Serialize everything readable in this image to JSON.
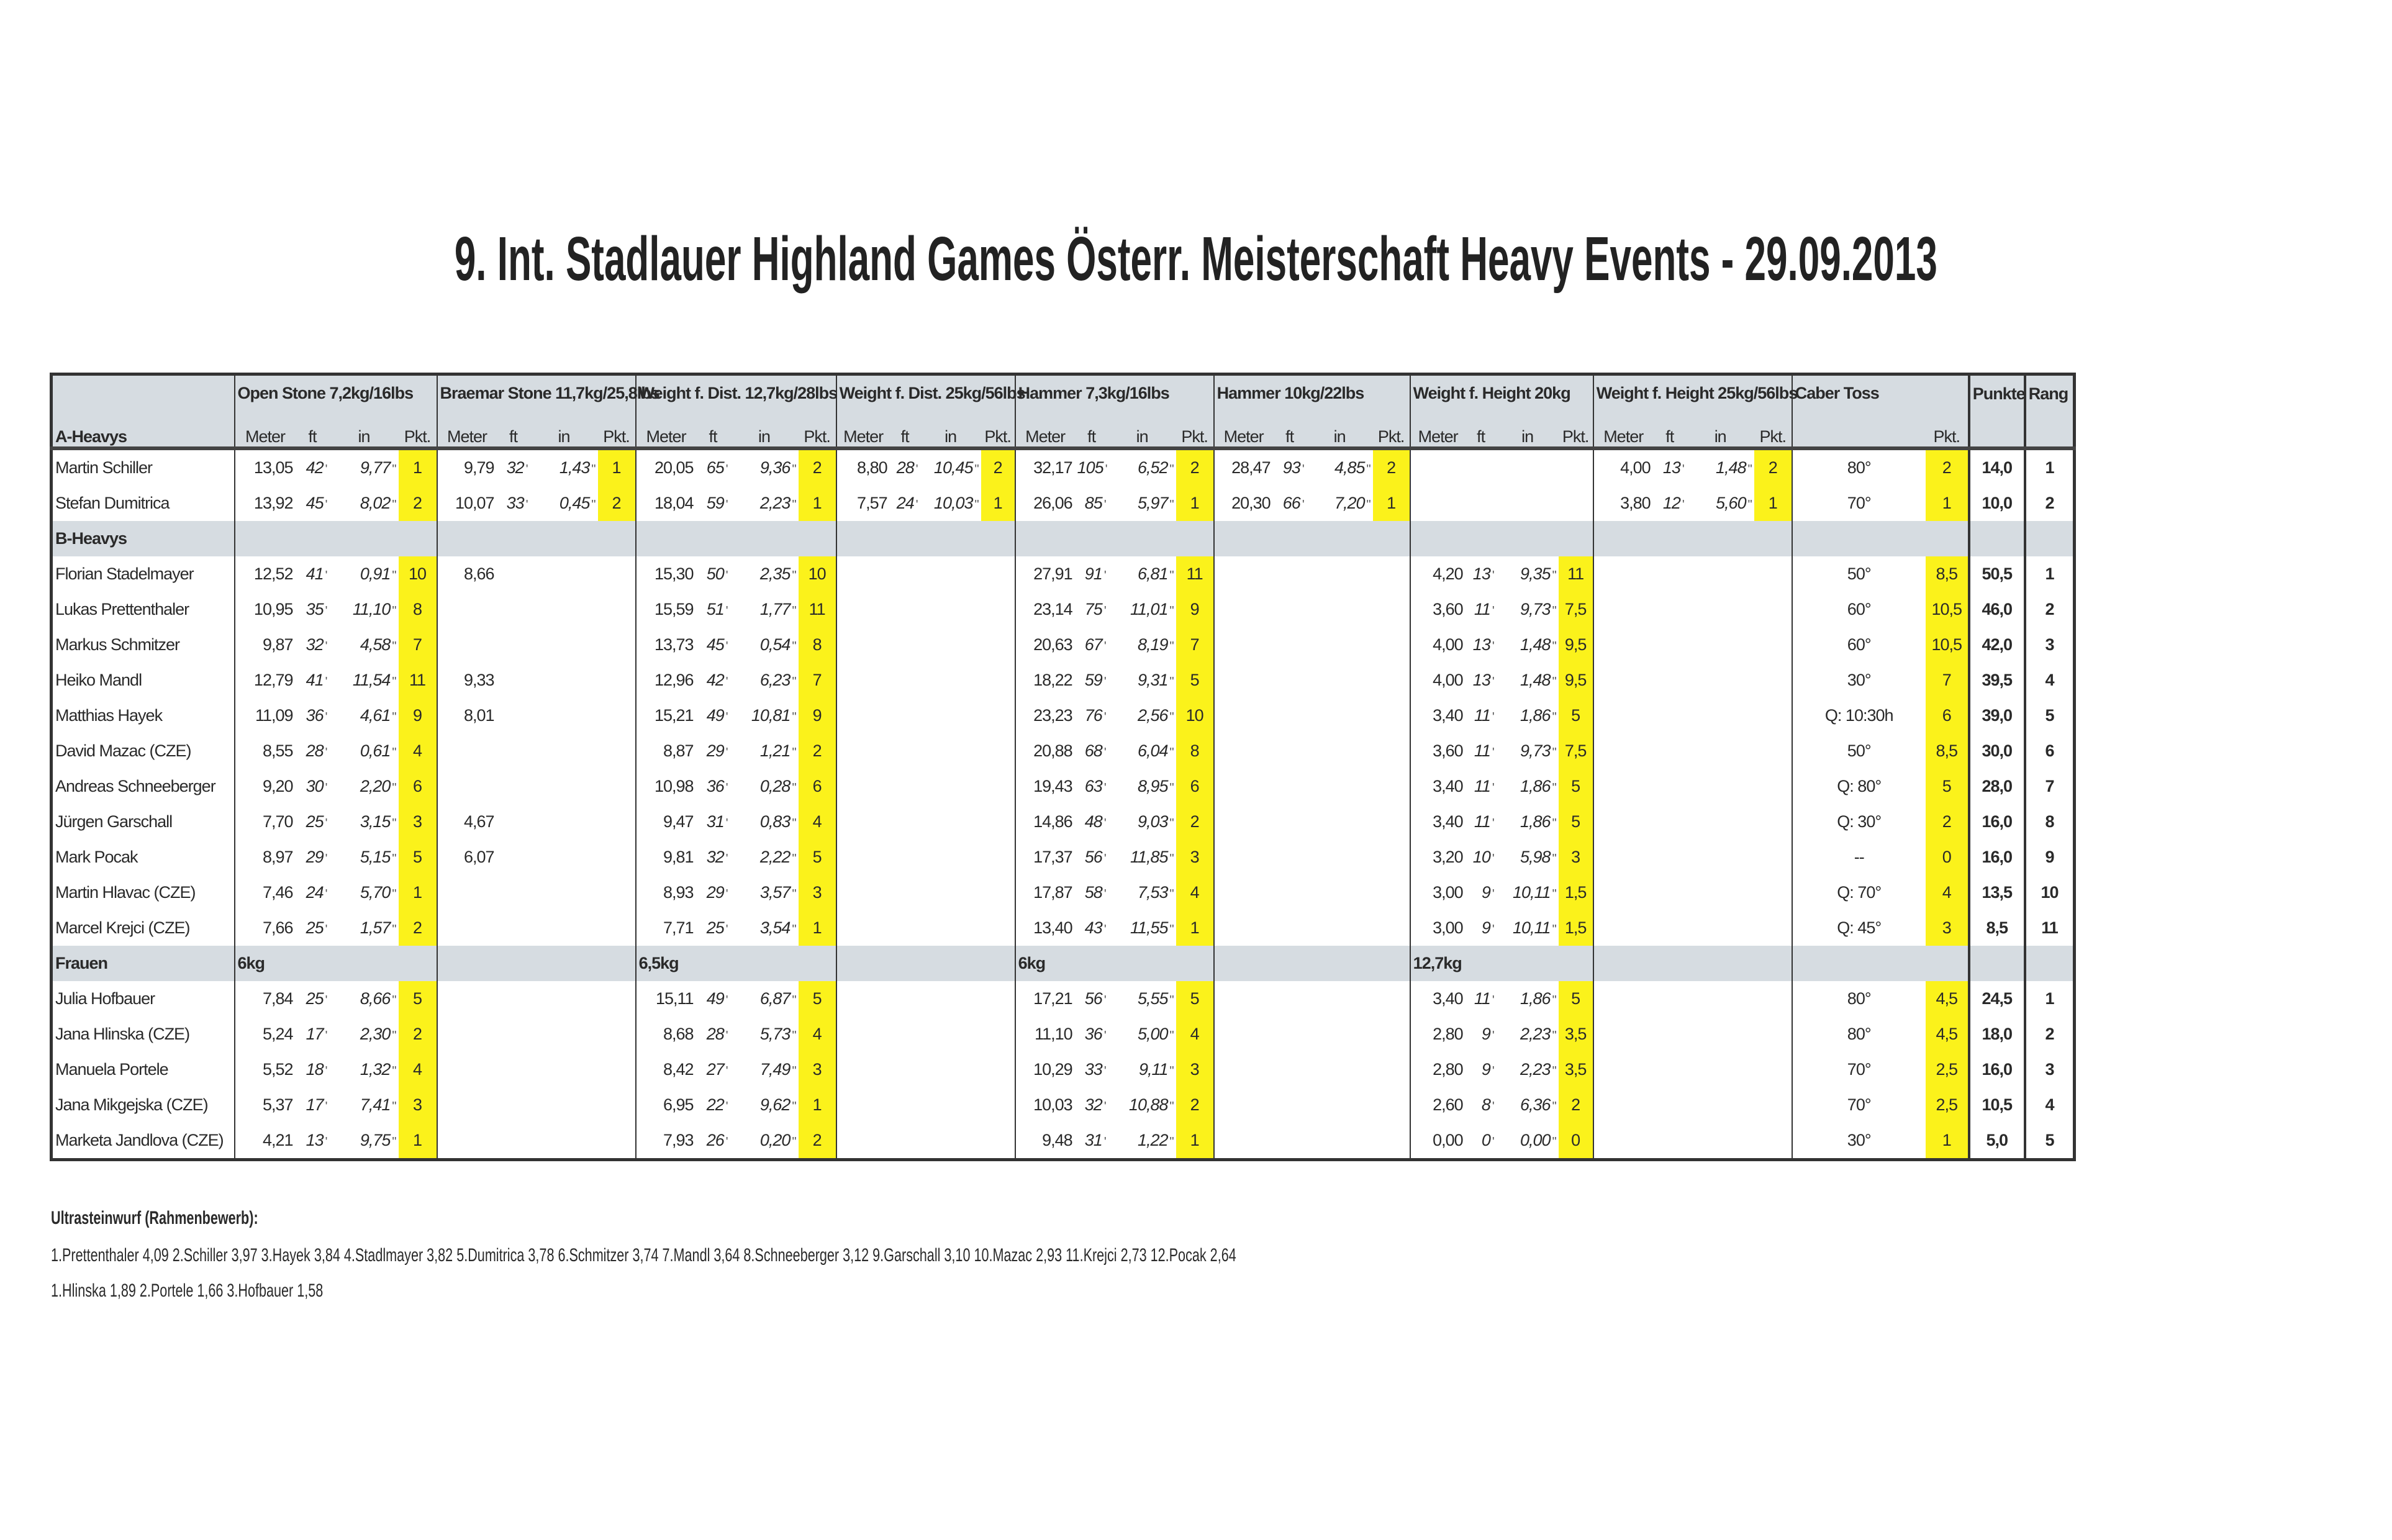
{
  "title": "9. Int. Stadlauer Highland Games Österr. Meisterschaft Heavy Events - 29.09.2013",
  "colors": {
    "highlight": "#fbf21b",
    "header_bg": "#d6dce1"
  },
  "marks": {
    "ft": "'",
    "in": "\""
  },
  "events": [
    {
      "key": "os",
      "label": "Open Stone 7,2kg/16lbs"
    },
    {
      "key": "bs",
      "label": "Braemar Stone 11,7kg/25,8lbs"
    },
    {
      "key": "wd12",
      "label": "Weight f. Dist. 12,7kg/28lbs"
    },
    {
      "key": "wd25",
      "label": "Weight f. Dist. 25kg/56lbs"
    },
    {
      "key": "h7",
      "label": "Hammer 7,3kg/16lbs"
    },
    {
      "key": "h10",
      "label": "Hammer 10kg/22lbs"
    },
    {
      "key": "wh20",
      "label": "Weight f. Height 20kg"
    },
    {
      "key": "wh25",
      "label": "Weight f. Height 25kg/56lbs"
    }
  ],
  "sub_labels": {
    "meter": "Meter",
    "ft": "ft",
    "in": "in",
    "pkt": "Pkt."
  },
  "caber_label": "Caber Toss",
  "punkte_label": "Punkte",
  "rang_label": "Rang",
  "first_group": "A-Heavys",
  "rows": [
    {
      "name": "Martin Schiller",
      "ev": {
        "os": [
          "13,05",
          "42",
          "9,77",
          "1"
        ],
        "bs": [
          "9,79",
          "32",
          "1,43",
          "1"
        ],
        "wd12": [
          "20,05",
          "65",
          "9,36",
          "2"
        ],
        "wd25": [
          "8,80",
          "28",
          "10,45",
          "2"
        ],
        "h7": [
          "32,17",
          "105",
          "6,52",
          "2"
        ],
        "h10": [
          "28,47",
          "93",
          "4,85",
          "2"
        ],
        "wh25": [
          "4,00",
          "13",
          "1,48",
          "2"
        ]
      },
      "caber": "80°",
      "caber_pkt": "2",
      "punkte": "14,0",
      "rang": "1"
    },
    {
      "name": "Stefan Dumitrica",
      "ev": {
        "os": [
          "13,92",
          "45",
          "8,02",
          "2"
        ],
        "bs": [
          "10,07",
          "33",
          "0,45",
          "2"
        ],
        "wd12": [
          "18,04",
          "59",
          "2,23",
          "1"
        ],
        "wd25": [
          "7,57",
          "24",
          "10,03",
          "1"
        ],
        "h7": [
          "26,06",
          "85",
          "5,97",
          "1"
        ],
        "h10": [
          "20,30",
          "66",
          "7,20",
          "1"
        ],
        "wh25": [
          "3,80",
          "12",
          "5,60",
          "1"
        ]
      },
      "caber": "70°",
      "caber_pkt": "1",
      "punkte": "10,0",
      "rang": "2"
    },
    {
      "group": "B-Heavys"
    },
    {
      "name": "Florian Stadelmayer",
      "ev": {
        "os": [
          "12,52",
          "41",
          "0,91",
          "10"
        ],
        "bs": [
          "8,66"
        ],
        "wd12": [
          "15,30",
          "50",
          "2,35",
          "10"
        ],
        "h7": [
          "27,91",
          "91",
          "6,81",
          "11"
        ],
        "wh20": [
          "4,20",
          "13",
          "9,35",
          "11"
        ]
      },
      "caber": "50°",
      "caber_pkt": "8,5",
      "punkte": "50,5",
      "rang": "1"
    },
    {
      "name": "Lukas Prettenthaler",
      "ev": {
        "os": [
          "10,95",
          "35",
          "11,10",
          "8"
        ],
        "wd12": [
          "15,59",
          "51",
          "1,77",
          "11"
        ],
        "h7": [
          "23,14",
          "75",
          "11,01",
          "9"
        ],
        "wh20": [
          "3,60",
          "11",
          "9,73",
          "7,5"
        ]
      },
      "caber": "60°",
      "caber_pkt": "10,5",
      "punkte": "46,0",
      "rang": "2"
    },
    {
      "name": "Markus Schmitzer",
      "ev": {
        "os": [
          "9,87",
          "32",
          "4,58",
          "7"
        ],
        "wd12": [
          "13,73",
          "45",
          "0,54",
          "8"
        ],
        "h7": [
          "20,63",
          "67",
          "8,19",
          "7"
        ],
        "wh20": [
          "4,00",
          "13",
          "1,48",
          "9,5"
        ]
      },
      "caber": "60°",
      "caber_pkt": "10,5",
      "punkte": "42,0",
      "rang": "3"
    },
    {
      "name": "Heiko Mandl",
      "ev": {
        "os": [
          "12,79",
          "41",
          "11,54",
          "11"
        ],
        "bs": [
          "9,33"
        ],
        "wd12": [
          "12,96",
          "42",
          "6,23",
          "7"
        ],
        "h7": [
          "18,22",
          "59",
          "9,31",
          "5"
        ],
        "wh20": [
          "4,00",
          "13",
          "1,48",
          "9,5"
        ]
      },
      "caber": "30°",
      "caber_pkt": "7",
      "punkte": "39,5",
      "rang": "4"
    },
    {
      "name": "Matthias Hayek",
      "ev": {
        "os": [
          "11,09",
          "36",
          "4,61",
          "9"
        ],
        "bs": [
          "8,01"
        ],
        "wd12": [
          "15,21",
          "49",
          "10,81",
          "9"
        ],
        "h7": [
          "23,23",
          "76",
          "2,56",
          "10"
        ],
        "wh20": [
          "3,40",
          "11",
          "1,86",
          "5"
        ]
      },
      "caber": "Q: 10:30h",
      "caber_pkt": "6",
      "punkte": "39,0",
      "rang": "5"
    },
    {
      "name": "David Mazac (CZE)",
      "ev": {
        "os": [
          "8,55",
          "28",
          "0,61",
          "4"
        ],
        "wd12": [
          "8,87",
          "29",
          "1,21",
          "2"
        ],
        "h7": [
          "20,88",
          "68",
          "6,04",
          "8"
        ],
        "wh20": [
          "3,60",
          "11",
          "9,73",
          "7,5"
        ]
      },
      "caber": "50°",
      "caber_pkt": "8,5",
      "punkte": "30,0",
      "rang": "6"
    },
    {
      "name": "Andreas Schneeberger",
      "ev": {
        "os": [
          "9,20",
          "30",
          "2,20",
          "6"
        ],
        "wd12": [
          "10,98",
          "36",
          "0,28",
          "6"
        ],
        "h7": [
          "19,43",
          "63",
          "8,95",
          "6"
        ],
        "wh20": [
          "3,40",
          "11",
          "1,86",
          "5"
        ]
      },
      "caber": "Q: 80°",
      "caber_pkt": "5",
      "punkte": "28,0",
      "rang": "7"
    },
    {
      "name": "Jürgen Garschall",
      "ev": {
        "os": [
          "7,70",
          "25",
          "3,15",
          "3"
        ],
        "bs": [
          "4,67"
        ],
        "wd12": [
          "9,47",
          "31",
          "0,83",
          "4"
        ],
        "h7": [
          "14,86",
          "48",
          "9,03",
          "2"
        ],
        "wh20": [
          "3,40",
          "11",
          "1,86",
          "5"
        ]
      },
      "caber": "Q: 30°",
      "caber_pkt": "2",
      "punkte": "16,0",
      "rang": "8"
    },
    {
      "name": "Mark Pocak",
      "ev": {
        "os": [
          "8,97",
          "29",
          "5,15",
          "5"
        ],
        "bs": [
          "6,07"
        ],
        "wd12": [
          "9,81",
          "32",
          "2,22",
          "5"
        ],
        "h7": [
          "17,37",
          "56",
          "11,85",
          "3"
        ],
        "wh20": [
          "3,20",
          "10",
          "5,98",
          "3"
        ]
      },
      "caber": "--",
      "caber_pkt": "0",
      "punkte": "16,0",
      "rang": "9"
    },
    {
      "name": "Martin Hlavac (CZE)",
      "ev": {
        "os": [
          "7,46",
          "24",
          "5,70",
          "1"
        ],
        "wd12": [
          "8,93",
          "29",
          "3,57",
          "3"
        ],
        "h7": [
          "17,87",
          "58",
          "7,53",
          "4"
        ],
        "wh20": [
          "3,00",
          "9",
          "10,11",
          "1,5"
        ]
      },
      "caber": "Q: 70°",
      "caber_pkt": "4",
      "punkte": "13,5",
      "rang": "10"
    },
    {
      "name": "Marcel Krejci (CZE)",
      "ev": {
        "os": [
          "7,66",
          "25",
          "1,57",
          "2"
        ],
        "wd12": [
          "7,71",
          "25",
          "3,54",
          "1"
        ],
        "h7": [
          "13,40",
          "43",
          "11,55",
          "1"
        ],
        "wh20": [
          "3,00",
          "9",
          "10,11",
          "1,5"
        ]
      },
      "caber": "Q: 45°",
      "caber_pkt": "3",
      "punkte": "8,5",
      "rang": "11"
    },
    {
      "group": "Frauen",
      "weights": {
        "os": "6kg",
        "wd12": "6,5kg",
        "h7": "6kg",
        "wh20": "12,7kg"
      }
    },
    {
      "name": "Julia Hofbauer",
      "ev": {
        "os": [
          "7,84",
          "25",
          "8,66",
          "5"
        ],
        "wd12": [
          "15,11",
          "49",
          "6,87",
          "5"
        ],
        "h7": [
          "17,21",
          "56",
          "5,55",
          "5"
        ],
        "wh20": [
          "3,40",
          "11",
          "1,86",
          "5"
        ]
      },
      "caber": "80°",
      "caber_pkt": "4,5",
      "punkte": "24,5",
      "rang": "1"
    },
    {
      "name": "Jana Hlinska (CZE)",
      "ev": {
        "os": [
          "5,24",
          "17",
          "2,30",
          "2"
        ],
        "wd12": [
          "8,68",
          "28",
          "5,73",
          "4"
        ],
        "h7": [
          "11,10",
          "36",
          "5,00",
          "4"
        ],
        "wh20": [
          "2,80",
          "9",
          "2,23",
          "3,5"
        ]
      },
      "caber": "80°",
      "caber_pkt": "4,5",
      "punkte": "18,0",
      "rang": "2"
    },
    {
      "name": "Manuela Portele",
      "ev": {
        "os": [
          "5,52",
          "18",
          "1,32",
          "4"
        ],
        "wd12": [
          "8,42",
          "27",
          "7,49",
          "3"
        ],
        "h7": [
          "10,29",
          "33",
          "9,11",
          "3"
        ],
        "wh20": [
          "2,80",
          "9",
          "2,23",
          "3,5"
        ]
      },
      "caber": "70°",
      "caber_pkt": "2,5",
      "punkte": "16,0",
      "rang": "3"
    },
    {
      "name": "Jana Mikgejska (CZE)",
      "ev": {
        "os": [
          "5,37",
          "17",
          "7,41",
          "3"
        ],
        "wd12": [
          "6,95",
          "22",
          "9,62",
          "1"
        ],
        "h7": [
          "10,03",
          "32",
          "10,88",
          "2"
        ],
        "wh20": [
          "2,60",
          "8",
          "6,36",
          "2"
        ]
      },
      "caber": "70°",
      "caber_pkt": "2,5",
      "punkte": "10,5",
      "rang": "4"
    },
    {
      "name": "Marketa Jandlova (CZE)",
      "ev": {
        "os": [
          "4,21",
          "13",
          "9,75",
          "1"
        ],
        "wd12": [
          "7,93",
          "26",
          "0,20",
          "2"
        ],
        "h7": [
          "9,48",
          "31",
          "1,22",
          "1"
        ],
        "wh20": [
          "0,00",
          "0",
          "0,00",
          "0"
        ]
      },
      "caber": "30°",
      "caber_pkt": "1",
      "punkte": "5,0",
      "rang": "5"
    }
  ],
  "footer": {
    "heading": "Ultrasteinwurf (Rahmenbewerb):",
    "men": "1.Prettenthaler 4,09 2.Schiller 3,97 3.Hayek 3,84 4.Stadlmayer 3,82 5.Dumitrica 3,78 6.Schmitzer 3,74 7.Mandl 3,64 8.Schneeberger 3,12 9.Garschall 3,10 10.Mazac 2,93 11.Krejci 2,73 12.Pocak 2,64",
    "women": "1.Hlinska 1,89 2.Portele 1,66 3.Hofbauer 1,58"
  }
}
